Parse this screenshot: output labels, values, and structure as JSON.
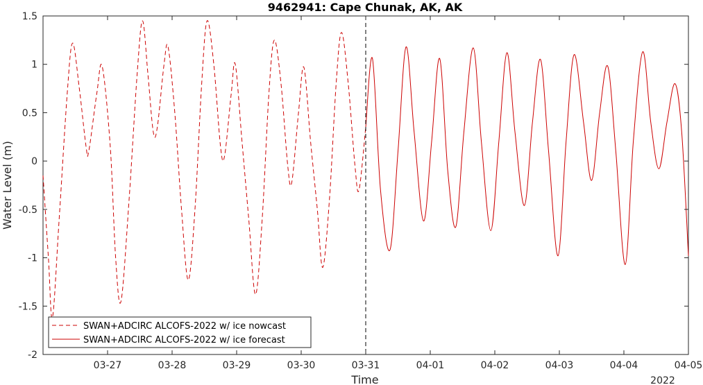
{
  "chart_data": {
    "type": "line",
    "title": "9462941: Cape Chunak, AK, AK",
    "xlabel": "Time",
    "ylabel": "Water Level (m)",
    "x_tick_labels": [
      "03-27",
      "03-28",
      "03-29",
      "03-30",
      "03-31",
      "04-01",
      "04-02",
      "04-03",
      "04-04",
      "04-05"
    ],
    "x_secondary_label": "2022",
    "xlim": [
      "2022-03-26 00:00",
      "2022-04-05 00:00"
    ],
    "ylim": [
      -2,
      1.5
    ],
    "y_ticks": [
      -2,
      -1.5,
      -1,
      -0.5,
      0,
      0.5,
      1,
      1.5
    ],
    "y_tick_labels": [
      "-2",
      "-1.5",
      "-1",
      "-0.5",
      "0",
      "0.5",
      "1",
      "1.5"
    ],
    "nowcast_forecast_boundary": "2022-03-31 00:00",
    "grid": false,
    "legend_position": "bottom-left",
    "series": [
      {
        "name": "SWAN+ADCIRC ALCOFS-2022 w/ ice nowcast",
        "color": "#cc0000",
        "style": "dashed",
        "points": [
          [
            "2022-03-26 00:00",
            -0.15
          ],
          [
            "2022-03-26 02:00",
            -1.0
          ],
          [
            "2022-03-26 03:30",
            -1.62
          ],
          [
            "2022-03-26 06:00",
            -0.6
          ],
          [
            "2022-03-26 09:00",
            0.7
          ],
          [
            "2022-03-26 11:00",
            1.22
          ],
          [
            "2022-03-26 13:30",
            0.75
          ],
          [
            "2022-03-26 16:00",
            0.15
          ],
          [
            "2022-03-26 17:00",
            0.1
          ],
          [
            "2022-03-26 20:00",
            0.7
          ],
          [
            "2022-03-26 22:00",
            0.98
          ],
          [
            "2022-03-27 01:00",
            0.15
          ],
          [
            "2022-03-27 03:00",
            -1.0
          ],
          [
            "2022-03-27 05:00",
            -1.45
          ],
          [
            "2022-03-27 08:00",
            -0.4
          ],
          [
            "2022-03-27 11:00",
            0.9
          ],
          [
            "2022-03-27 13:00",
            1.45
          ],
          [
            "2022-03-27 15:00",
            0.9
          ],
          [
            "2022-03-27 17:00",
            0.3
          ],
          [
            "2022-03-27 18:30",
            0.35
          ],
          [
            "2022-03-27 21:00",
            1.0
          ],
          [
            "2022-03-27 22:30",
            1.18
          ],
          [
            "2022-03-28 01:00",
            0.5
          ],
          [
            "2022-03-28 03:30",
            -0.5
          ],
          [
            "2022-03-28 06:00",
            -1.23
          ],
          [
            "2022-03-28 08:30",
            -0.5
          ],
          [
            "2022-03-28 11:00",
            0.8
          ],
          [
            "2022-03-28 13:00",
            1.45
          ],
          [
            "2022-03-28 15:30",
            1.0
          ],
          [
            "2022-03-28 18:00",
            0.15
          ],
          [
            "2022-03-28 19:30",
            0.05
          ],
          [
            "2022-03-28 22:00",
            0.7
          ],
          [
            "2022-03-28 23:30",
            1.0
          ],
          [
            "2022-03-29 02:00",
            0.2
          ],
          [
            "2022-03-29 04:30",
            -0.6
          ],
          [
            "2022-03-29 07:00",
            -1.38
          ],
          [
            "2022-03-29 09:30",
            -0.6
          ],
          [
            "2022-03-29 12:00",
            0.7
          ],
          [
            "2022-03-29 14:00",
            1.25
          ],
          [
            "2022-03-29 16:30",
            0.8
          ],
          [
            "2022-03-29 19:00",
            -0.05
          ],
          [
            "2022-03-29 20:30",
            -0.22
          ],
          [
            "2022-03-29 23:00",
            0.5
          ],
          [
            "2022-03-30 01:00",
            0.97
          ],
          [
            "2022-03-30 03:30",
            0.2
          ],
          [
            "2022-03-30 06:00",
            -0.5
          ],
          [
            "2022-03-30 08:00",
            -1.1
          ],
          [
            "2022-03-30 10:30",
            -0.4
          ],
          [
            "2022-03-30 13:00",
            0.8
          ],
          [
            "2022-03-30 15:00",
            1.33
          ],
          [
            "2022-03-30 17:30",
            0.8
          ],
          [
            "2022-03-30 20:00",
            -0.05
          ],
          [
            "2022-03-30 21:30",
            -0.3
          ],
          [
            "2022-03-31 00:00",
            0.35
          ]
        ]
      },
      {
        "name": "SWAN+ADCIRC ALCOFS-2022 w/ ice forecast",
        "color": "#cc0000",
        "style": "solid",
        "points": [
          [
            "2022-03-31 00:00",
            0.35
          ],
          [
            "2022-03-31 02:30",
            1.06
          ],
          [
            "2022-03-31 05:30",
            -0.3
          ],
          [
            "2022-03-31 09:00",
            -0.92
          ],
          [
            "2022-03-31 12:00",
            0.1
          ],
          [
            "2022-03-31 15:00",
            1.18
          ],
          [
            "2022-03-31 18:00",
            0.3
          ],
          [
            "2022-03-31 21:30",
            -0.62
          ],
          [
            "2022-04-01 00:30",
            0.2
          ],
          [
            "2022-04-01 03:30",
            1.06
          ],
          [
            "2022-04-01 06:30",
            -0.1
          ],
          [
            "2022-04-01 09:30",
            -0.68
          ],
          [
            "2022-04-01 12:30",
            0.3
          ],
          [
            "2022-04-01 16:00",
            1.17
          ],
          [
            "2022-04-01 19:00",
            0.2
          ],
          [
            "2022-04-01 22:30",
            -0.72
          ],
          [
            "2022-04-02 01:30",
            0.2
          ],
          [
            "2022-04-02 04:30",
            1.12
          ],
          [
            "2022-04-02 07:30",
            0.3
          ],
          [
            "2022-04-02 11:00",
            -0.46
          ],
          [
            "2022-04-02 14:00",
            0.4
          ],
          [
            "2022-04-02 17:00",
            1.05
          ],
          [
            "2022-04-02 20:00",
            0.1
          ],
          [
            "2022-04-02 23:30",
            -0.98
          ],
          [
            "2022-04-03 02:30",
            0.2
          ],
          [
            "2022-04-03 05:30",
            1.1
          ],
          [
            "2022-04-03 09:00",
            0.4
          ],
          [
            "2022-04-03 12:00",
            -0.2
          ],
          [
            "2022-04-03 15:00",
            0.5
          ],
          [
            "2022-04-03 18:00",
            0.98
          ],
          [
            "2022-04-03 21:00",
            0.1
          ],
          [
            "2022-04-04 00:30",
            -1.07
          ],
          [
            "2022-04-04 03:30",
            0.2
          ],
          [
            "2022-04-04 07:00",
            1.13
          ],
          [
            "2022-04-04 10:00",
            0.4
          ],
          [
            "2022-04-04 13:00",
            -0.08
          ],
          [
            "2022-04-04 16:00",
            0.4
          ],
          [
            "2022-04-04 19:00",
            0.8
          ],
          [
            "2022-04-04 21:30",
            0.3
          ],
          [
            "2022-04-05 00:00",
            -0.98
          ]
        ]
      }
    ]
  }
}
